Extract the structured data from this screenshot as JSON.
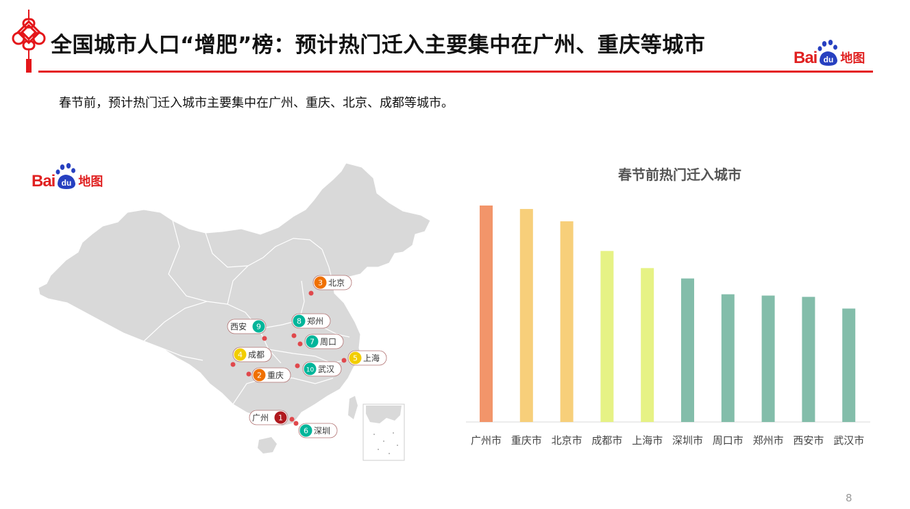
{
  "header": {
    "title": "全国城市人口“增肥”榜：预计热门迁入主要集中在广州、重庆等城市",
    "logo_text": "Bai",
    "logo_paw_text": "du",
    "logo_map_text": "地图"
  },
  "subtitle": "春节前，预计热门迁入城市主要集中在广州、重庆、北京、成都等城市。",
  "map_panel": {
    "logo_text": "Bai",
    "logo_paw_text": "du",
    "logo_map_text": "地图",
    "markers": [
      {
        "rank": "3",
        "name": "北京",
        "color": "#f07000"
      },
      {
        "rank": "8",
        "name": "郑州",
        "color": "#00b59a"
      },
      {
        "rank": "9",
        "name": "西安",
        "color": "#00b59a"
      },
      {
        "rank": "7",
        "name": "周口",
        "color": "#00b59a"
      },
      {
        "rank": "4",
        "name": "成都",
        "color": "#f2cd00"
      },
      {
        "rank": "5",
        "name": "上海",
        "color": "#f2cd00"
      },
      {
        "rank": "10",
        "name": "武汉",
        "color": "#00b59a"
      },
      {
        "rank": "2",
        "name": "重庆",
        "color": "#f07000"
      },
      {
        "rank": "1",
        "name": "广州",
        "color": "#b0191e"
      },
      {
        "rank": "6",
        "name": "深圳",
        "color": "#00b59a"
      }
    ]
  },
  "chart_data": {
    "type": "bar",
    "title": "春节前热门迁入城市",
    "categories": [
      "广州市",
      "重庆市",
      "北京市",
      "成都市",
      "上海市",
      "深圳市",
      "周口市",
      "郑州市",
      "西安市",
      "武汉市"
    ],
    "values": [
      100,
      98.4,
      92.7,
      79,
      71.1,
      66.3,
      59,
      58.4,
      57.8,
      52.4
    ],
    "colors": [
      "#f2956a",
      "#f7cf7a",
      "#f7cf7a",
      "#e6f285",
      "#e6f285",
      "#83bdaa",
      "#83bdaa",
      "#83bdaa",
      "#83bdaa",
      "#83bdaa"
    ],
    "ylim": [
      0,
      100
    ],
    "grid": false,
    "legend": "none"
  },
  "colors": {
    "accent_red": "#e4161a",
    "map_fill": "#d9d9d9"
  },
  "page_number": "8"
}
